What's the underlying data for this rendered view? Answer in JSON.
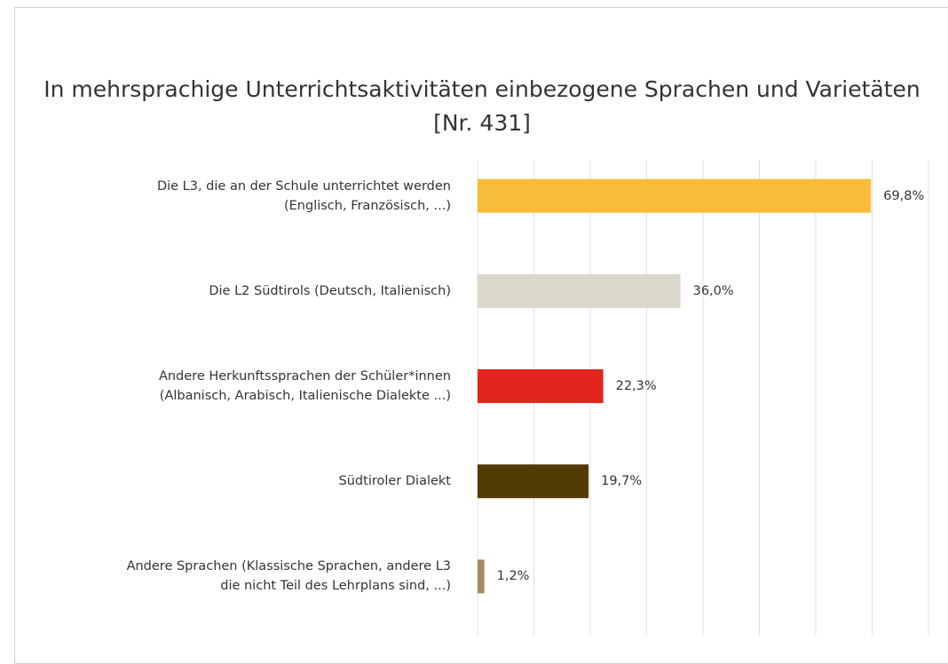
{
  "chart_data": {
    "type": "bar",
    "orientation": "horizontal",
    "title": "In mehrsprachige Unterrichtsaktivitäten einbezogene Sprachen und Varietäten\n[Nr. 431]",
    "categories": [
      "Die L3, die an der Schule unterrichtet werden\n(Englisch, Französisch, ...)",
      "Die L2 Südtirols (Deutsch, Italienisch)",
      "Andere Herkunftssprachen der Schüler*innen\n(Albanisch, Arabisch, Italienische Dialekte ...)",
      "Südtiroler Dialekt",
      "Andere Sprachen (Klassische Sprachen, andere L3\ndie nicht Teil des Lehrplans sind, ...)"
    ],
    "values": [
      69.8,
      36.0,
      22.3,
      19.7,
      1.2
    ],
    "value_labels": [
      "69,8%",
      "36,0%",
      "22,3%",
      "19,7%",
      "1,2%"
    ],
    "colors": [
      "#f9bc38",
      "#dbd8cb",
      "#e2261f",
      "#523c04",
      "#a88a5c"
    ],
    "xlim": [
      0,
      80
    ],
    "xticks": [
      0,
      10,
      20,
      30,
      40,
      50,
      60,
      70,
      80
    ],
    "grid": true
  }
}
